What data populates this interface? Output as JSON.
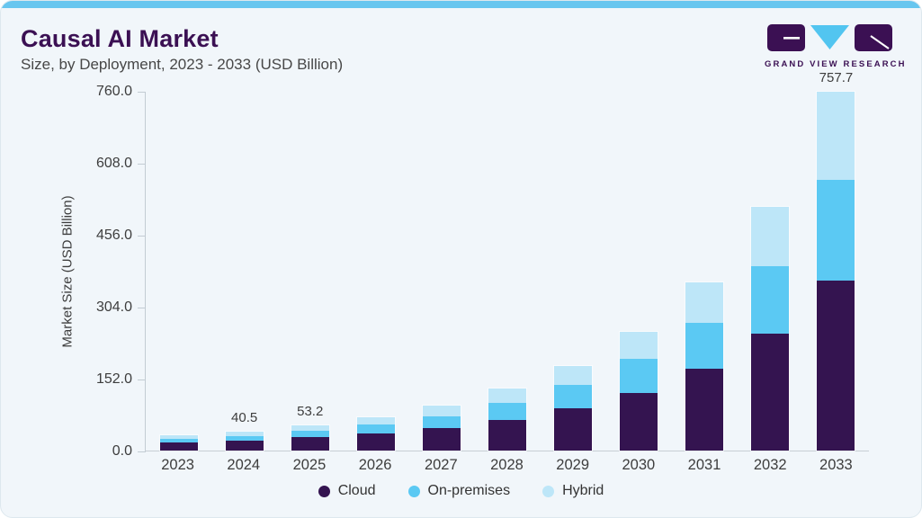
{
  "card": {
    "title": "Causal AI Market",
    "subtitle": "Size, by Deployment, 2023 - 2033 (USD Billion)",
    "accent_color": "#68c6ef",
    "background_color": "#f1f6fa",
    "title_color": "#3b1053"
  },
  "logo": {
    "wordmark": "GRAND VIEW RESEARCH",
    "block_color": "#3b1053",
    "triangle_color": "#52c5f0"
  },
  "chart_data": {
    "type": "bar",
    "stacked": true,
    "title": "Causal AI Market Size, by Deployment, 2023 - 2033 (USD Billion)",
    "xlabel": "",
    "ylabel": "Market Size (USD Billion)",
    "ylim": [
      0,
      760
    ],
    "yticks": [
      "760.0",
      "608.0",
      "456.0",
      "304.0",
      "152.0",
      "0.0"
    ],
    "grid": false,
    "legend_position": "bottom",
    "categories": [
      "2023",
      "2024",
      "2025",
      "2026",
      "2027",
      "2028",
      "2029",
      "2030",
      "2031",
      "2032",
      "2033"
    ],
    "series": [
      {
        "name": "Cloud",
        "color": "#341450",
        "values": [
          17.4,
          20.5,
          28.2,
          36.1,
          48.4,
          65.3,
          88.5,
          121.0,
          173.2,
          246.4,
          359.1
        ]
      },
      {
        "name": "On-premises",
        "color": "#5bc9f3",
        "values": [
          7.9,
          10.3,
          13.2,
          18.4,
          24.7,
          35.2,
          50.0,
          72.8,
          96.2,
          143.9,
          213.7
        ]
      },
      {
        "name": "Hybrid",
        "color": "#bde6f8",
        "values": [
          6.3,
          9.7,
          11.8,
          15.5,
          21.9,
          30.0,
          40.0,
          56.2,
          85.6,
          124.7,
          184.9
        ]
      }
    ],
    "totals": [
      31.6,
      40.5,
      53.2,
      70.0,
      95.0,
      130.5,
      178.5,
      250.0,
      355.0,
      515.0,
      757.7
    ],
    "totals_labeled": {
      "2024": "40.5",
      "2025": "53.2",
      "2033": "757.7"
    }
  }
}
